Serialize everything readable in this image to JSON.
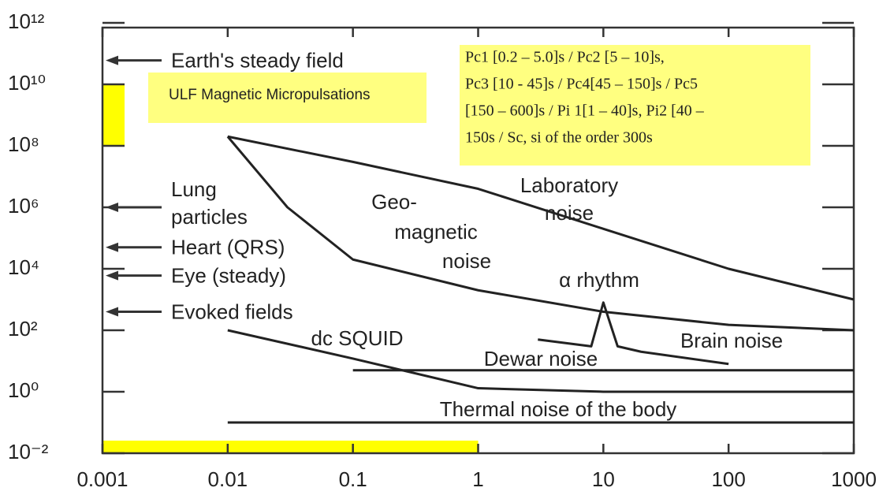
{
  "chart_data": {
    "type": "line",
    "log_x": true,
    "log_y": true,
    "xlim": [
      0.001,
      1000
    ],
    "ylim": [
      0.01,
      1000000000000.0
    ],
    "xticks": [
      0.001,
      0.01,
      0.1,
      1,
      10,
      100,
      1000
    ],
    "yticks": [
      {
        "value": 0.01,
        "label": "10⁻²"
      },
      {
        "value": 1,
        "label": "10⁰"
      },
      {
        "value": 100,
        "label": "10²"
      },
      {
        "value": 10000,
        "label": "10⁴"
      },
      {
        "value": 1000000,
        "label": "10⁶"
      },
      {
        "value": 100000000,
        "label": "10⁸"
      },
      {
        "value": 10000000000,
        "label": "10¹⁰"
      },
      {
        "value": 1000000000000,
        "label": "10¹²"
      }
    ],
    "series": [
      {
        "label": [
          "Laboratory",
          "noise"
        ],
        "color": "#222",
        "x": [
          0.01,
          0.1,
          1,
          10,
          100,
          1000
        ],
        "values": [
          200000000,
          30000000,
          4000000,
          200000,
          10000,
          1000
        ]
      },
      {
        "label": [
          "Geo-",
          "magnetic",
          "noise"
        ],
        "color": "#222",
        "x": [
          0.01,
          0.03,
          0.1,
          1,
          10,
          100,
          1000
        ],
        "values": [
          200000000,
          1000000,
          20000,
          2000,
          400,
          150,
          100
        ]
      },
      {
        "label": [
          "dc SQUID"
        ],
        "color": "#222",
        "x": [
          0.01,
          0.1,
          1,
          10,
          1000
        ],
        "values": [
          100,
          12,
          1.3,
          1,
          1
        ]
      },
      {
        "label": [
          "Dewar noise"
        ],
        "color": "#222",
        "x": [
          0.1,
          1000
        ],
        "values": [
          5,
          5
        ]
      },
      {
        "label": [
          "Thermal noise of the body"
        ],
        "color": "#222",
        "x": [
          0.01,
          1000
        ],
        "values": [
          0.1,
          0.1
        ]
      },
      {
        "label": [
          "Brain noise"
        ],
        "peak_label": "α rhythm",
        "color": "#222",
        "x": [
          3,
          8,
          10,
          13,
          20,
          100
        ],
        "values": [
          50,
          30,
          800,
          30,
          20,
          8
        ]
      }
    ],
    "annotations": [
      {
        "text": [
          "Earth's steady field"
        ],
        "value": 60000000000
      },
      {
        "text": [
          "Lung",
          "particles"
        ],
        "value": 1000000
      },
      {
        "text": [
          "Heart (QRS)"
        ],
        "value": 50000
      },
      {
        "text": [
          "Eye (steady)"
        ],
        "value": 6000
      },
      {
        "text": [
          "Evoked fields"
        ],
        "value": 400
      }
    ],
    "highlight_color": "#ffff00",
    "highlight_x": [
      0.001,
      1
    ],
    "highlight_y": [
      100000000,
      10000000000
    ],
    "notes": [
      {
        "lines": [
          "ULF Magnetic Micropulsations"
        ],
        "color": "#ffff80"
      },
      {
        "lines": [
          "Pc1 [0.2 – 5.0]s / Pc2 [5 – 10]s,",
          "Pc3 [10 - 45]s / Pc4[45 – 150]s / Pc5",
          "[150 – 600]s / Pi 1[1 – 40]s, Pi2 [40 –",
          "150s / Sc, si of the order 300s"
        ],
        "color": "#ffff80"
      }
    ]
  }
}
